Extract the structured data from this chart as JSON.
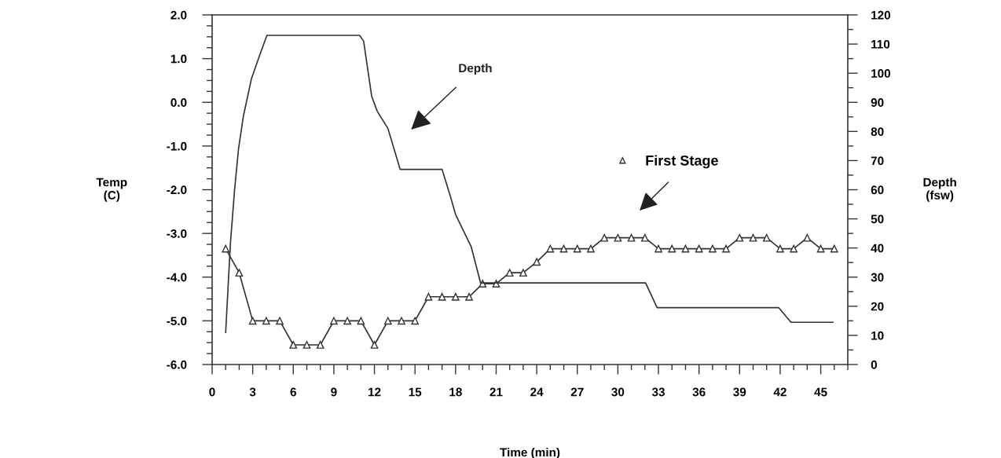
{
  "chart_data": {
    "type": "line",
    "xlabel": "Time (min)",
    "ylabel": "Temp\n(C)",
    "y2label": "Depth\n(fsw)",
    "xlim": [
      0,
      47
    ],
    "xticks": [
      {
        "value": 0,
        "label": "0"
      },
      {
        "value": 1,
        "label": null
      },
      {
        "value": 2,
        "label": null
      },
      {
        "value": 3,
        "label": "3"
      },
      {
        "value": 4,
        "label": null
      },
      {
        "value": 5,
        "label": null
      },
      {
        "value": 6,
        "label": "6"
      },
      {
        "value": 7,
        "label": null
      },
      {
        "value": 8,
        "label": null
      },
      {
        "value": 9,
        "label": "9"
      },
      {
        "value": 10,
        "label": null
      },
      {
        "value": 11,
        "label": null
      },
      {
        "value": 12,
        "label": "12"
      },
      {
        "value": 13,
        "label": null
      },
      {
        "value": 14,
        "label": null
      },
      {
        "value": 15,
        "label": "15"
      },
      {
        "value": 16,
        "label": null
      },
      {
        "value": 17,
        "label": null
      },
      {
        "value": 18,
        "label": "18"
      },
      {
        "value": 19,
        "label": null
      },
      {
        "value": 20,
        "label": null
      },
      {
        "value": 21,
        "label": "21"
      },
      {
        "value": 22,
        "label": null
      },
      {
        "value": 23,
        "label": null
      },
      {
        "value": 24,
        "label": "24"
      },
      {
        "value": 25,
        "label": null
      },
      {
        "value": 26,
        "label": null
      },
      {
        "value": 27,
        "label": "27"
      },
      {
        "value": 28,
        "label": null
      },
      {
        "value": 29,
        "label": null
      },
      {
        "value": 30,
        "label": "30"
      },
      {
        "value": 31,
        "label": null
      },
      {
        "value": 32,
        "label": null
      },
      {
        "value": 33,
        "label": "33"
      },
      {
        "value": 34,
        "label": null
      },
      {
        "value": 35,
        "label": null
      },
      {
        "value": 36,
        "label": "36"
      },
      {
        "value": 37,
        "label": null
      },
      {
        "value": 38,
        "label": null
      },
      {
        "value": 39,
        "label": "39"
      },
      {
        "value": 40,
        "label": null
      },
      {
        "value": 41,
        "label": null
      },
      {
        "value": 42,
        "label": "42"
      },
      {
        "value": 43,
        "label": null
      },
      {
        "value": 44,
        "label": null
      },
      {
        "value": 45,
        "label": "45"
      },
      {
        "value": 46,
        "label": null
      },
      {
        "value": 47,
        "label": null
      }
    ],
    "ylim": [
      -6,
      2
    ],
    "yticks": [
      {
        "value": -6,
        "label": "-6.0"
      },
      {
        "value": -5.75,
        "label": null
      },
      {
        "value": -5.5,
        "label": null
      },
      {
        "value": -5.25,
        "label": null
      },
      {
        "value": -5,
        "label": "-5.0"
      },
      {
        "value": -4.75,
        "label": null
      },
      {
        "value": -4.5,
        "label": null
      },
      {
        "value": -4.25,
        "label": null
      },
      {
        "value": -4,
        "label": "-4.0"
      },
      {
        "value": -3.75,
        "label": null
      },
      {
        "value": -3.5,
        "label": null
      },
      {
        "value": -3.25,
        "label": null
      },
      {
        "value": -3,
        "label": "-3.0"
      },
      {
        "value": -2.75,
        "label": null
      },
      {
        "value": -2.5,
        "label": null
      },
      {
        "value": -2.25,
        "label": null
      },
      {
        "value": -2,
        "label": "-2.0"
      },
      {
        "value": -1.75,
        "label": null
      },
      {
        "value": -1.5,
        "label": null
      },
      {
        "value": -1.25,
        "label": null
      },
      {
        "value": -1,
        "label": "-1.0"
      },
      {
        "value": -0.75,
        "label": null
      },
      {
        "value": -0.5,
        "label": null
      },
      {
        "value": -0.25,
        "label": null
      },
      {
        "value": 0,
        "label": "0.0"
      },
      {
        "value": 0.25,
        "label": null
      },
      {
        "value": 0.5,
        "label": null
      },
      {
        "value": 0.75,
        "label": null
      },
      {
        "value": 1,
        "label": "1.0"
      },
      {
        "value": 1.25,
        "label": null
      },
      {
        "value": 1.5,
        "label": null
      },
      {
        "value": 1.75,
        "label": null
      },
      {
        "value": 2,
        "label": "2.0"
      }
    ],
    "y2lim": [
      0,
      120
    ],
    "y2ticks": [
      0,
      {
        "value": 5,
        "label": null
      },
      10,
      {
        "value": 15,
        "label": null
      },
      20,
      {
        "value": 25,
        "label": null
      },
      30,
      {
        "value": 35,
        "label": null
      },
      40,
      {
        "value": 45,
        "label": null
      },
      50,
      {
        "value": 55,
        "label": null
      },
      60,
      {
        "value": 65,
        "label": null
      },
      70,
      {
        "value": 75,
        "label": null
      },
      80,
      {
        "value": 85,
        "label": null
      },
      90,
      {
        "value": 95,
        "label": null
      },
      100,
      {
        "value": 105,
        "label": null
      },
      110,
      {
        "value": 115,
        "label": null
      },
      120
    ],
    "grid": false,
    "legend": "center right",
    "annotations": [
      "Depth"
    ],
    "series": [
      {
        "name": "First Stage",
        "color": "#333333",
        "marker": "triangle",
        "line_style": "solid",
        "x": [
          1,
          2,
          3,
          4,
          5,
          6,
          7,
          8,
          9,
          10,
          11,
          12,
          13,
          14,
          15,
          16,
          17,
          18,
          19,
          20,
          21,
          22,
          23,
          24,
          25,
          26,
          27,
          28,
          29,
          30,
          31,
          32,
          33,
          34,
          35,
          36,
          37,
          38,
          39,
          40,
          41,
          42,
          43,
          44,
          45,
          46
        ],
        "values": [
          -3.35,
          -3.9,
          -5.0,
          -5.0,
          -5.0,
          -5.55,
          -5.55,
          -5.55,
          -5.0,
          -5.0,
          -5.0,
          -5.55,
          -5.0,
          -5.0,
          -5.0,
          -4.45,
          -4.45,
          -4.45,
          -4.45,
          -4.15,
          -4.15,
          -3.9,
          -3.9,
          -3.65,
          -3.35,
          -3.35,
          -3.35,
          -3.35,
          -3.1,
          -3.1,
          -3.1,
          -3.1,
          -3.35,
          -3.35,
          -3.35,
          -3.35,
          -3.35,
          -3.35,
          -3.1,
          -3.1,
          -3.1,
          -3.35,
          -3.35,
          -3.1,
          -3.35,
          -3.35
        ]
      },
      {
        "color": "#333333",
        "axis": "y2",
        "marker": "none",
        "line_style": "solid",
        "x": [
          1.0,
          1.35,
          1.65,
          1.95,
          2.3,
          2.9,
          3.5,
          4.05,
          10.9,
          11.2,
          11.8,
          12.2,
          13.0,
          13.9,
          17.0,
          17.6,
          18.0,
          19.15,
          19.85,
          32.05,
          32.9,
          41.9,
          42.8,
          45.9
        ],
        "values": [
          11,
          41.5,
          59.5,
          74,
          85,
          98,
          106,
          113,
          113,
          111,
          92,
          87,
          81,
          67,
          67,
          58,
          51.5,
          40.5,
          28,
          28,
          19.5,
          19.5,
          14.5,
          14.5
        ]
      }
    ]
  }
}
